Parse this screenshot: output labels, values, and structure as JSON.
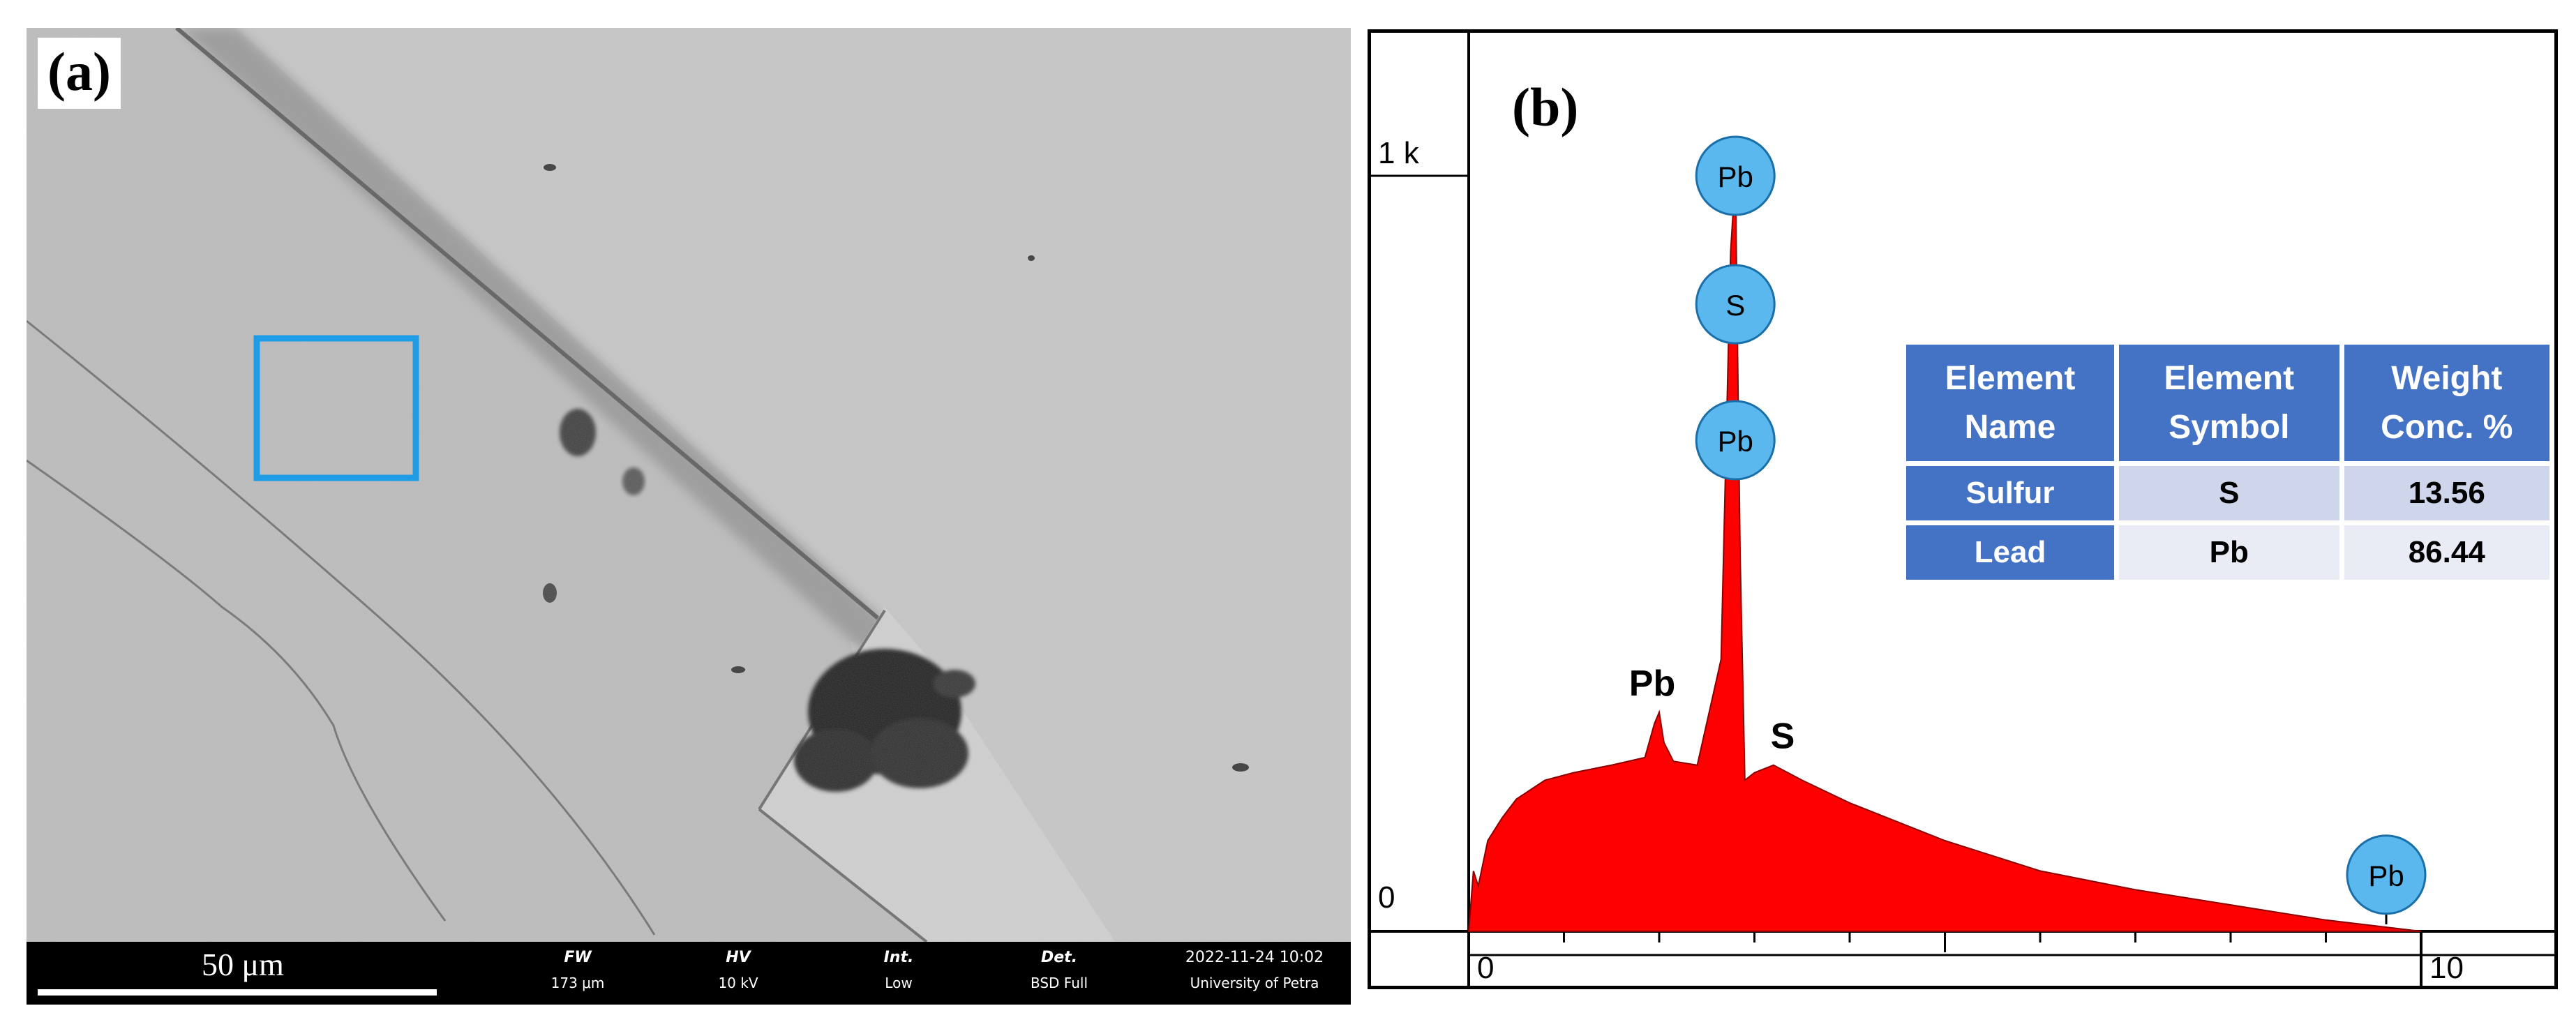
{
  "panel_a": {
    "letter": "(a)",
    "scale_bar": "50 μm",
    "info": [
      {
        "label": "FW",
        "value": "173 μm"
      },
      {
        "label": "HV",
        "value": "10 kV"
      },
      {
        "label": "Int.",
        "value": "Low"
      },
      {
        "label": "Det.",
        "value": "BSD Full"
      },
      {
        "label": "2022-11-24 10:02",
        "value": "University of Petra"
      }
    ]
  },
  "panel_b": {
    "letter": "(b)",
    "table": {
      "headers": [
        "Element Name",
        "Element Symbol",
        "Weight Conc. %"
      ],
      "rows": [
        {
          "name": "Sulfur",
          "symbol": "S",
          "weight": "13.56"
        },
        {
          "name": "Lead",
          "symbol": "Pb",
          "weight": "86.44"
        }
      ]
    }
  },
  "colors": {
    "spectrum_fill": "#ff0000",
    "marker_fill": "#5bb8ee",
    "table_header": "#4472c4",
    "roi_box": "#1e9de6"
  },
  "chart_data": {
    "type": "area",
    "title": "",
    "xlabel": "",
    "ylabel": "",
    "xlim": [
      0,
      10
    ],
    "ylim": [
      0,
      1000
    ],
    "y_tick_labels": [
      "0",
      "1 k"
    ],
    "x_tick_labels": [
      "0",
      "10"
    ],
    "series": [
      {
        "x": [
          0.0,
          0.05,
          0.1,
          0.2,
          0.35,
          0.5,
          0.8,
          1.1,
          1.5,
          1.85,
          1.95,
          2.0,
          2.05,
          2.15,
          2.4,
          2.65,
          2.75,
          2.8,
          2.85,
          2.9,
          3.0,
          3.2,
          3.5,
          4.0,
          5.0,
          6.0,
          7.0,
          8.0,
          9.0,
          10.0
        ],
        "y": [
          0,
          80,
          60,
          120,
          150,
          175,
          200,
          210,
          220,
          230,
          275,
          290,
          250,
          225,
          220,
          360,
          900,
          1000,
          500,
          200,
          210,
          220,
          200,
          170,
          120,
          80,
          55,
          35,
          15,
          0
        ]
      }
    ],
    "peak_labels": [
      {
        "label": "Pb",
        "x": 2.8,
        "y": 1000
      },
      {
        "label": "S",
        "x": 2.8,
        "y": 830
      },
      {
        "label": "Pb",
        "x": 2.8,
        "y": 650
      },
      {
        "label": "Pb",
        "x": 2.0,
        "y": 290
      },
      {
        "label": "S",
        "x": 3.15,
        "y": 220
      },
      {
        "label": "Pb",
        "x": 10.0,
        "y": 75
      }
    ]
  }
}
